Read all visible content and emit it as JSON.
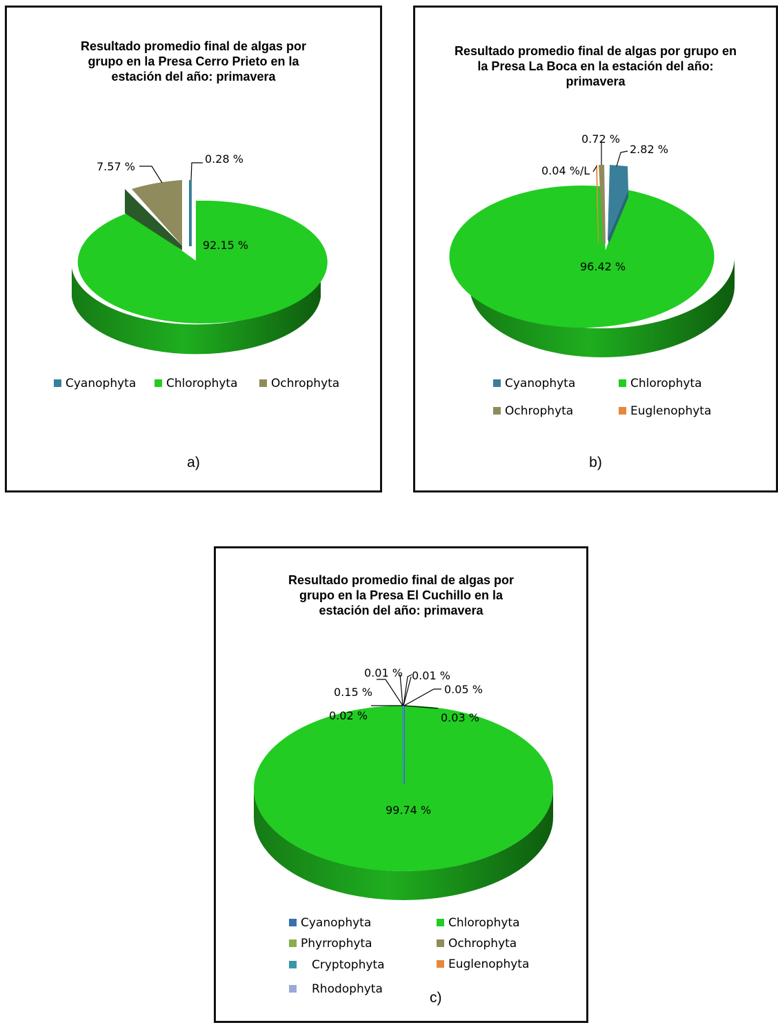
{
  "colors": {
    "Cyanophyta": "#3a7f9a",
    "Chlorophyta": "#22cc22",
    "Ochrophyta": "#8f8b5c",
    "Euglenophyta": "#e8873a",
    "Phyrrophyta": "#8aad4e",
    "Cryptophyta": "#3a95a8",
    "Rhodophyta": "#9aabd6"
  },
  "chart_data": [
    {
      "type": "pie",
      "title": "Resultado promedio final de algas por grupo en la Presa Cerro Prieto en la estación del año: primavera",
      "caption": "a)",
      "slices": [
        {
          "name": "Cyanophyta",
          "value": 0.28,
          "label": "0.28 %"
        },
        {
          "name": "Chlorophyta",
          "value": 92.15,
          "label": "92.15 %"
        },
        {
          "name": "Ochrophyta",
          "value": 7.57,
          "label": "7.57 %"
        }
      ],
      "legend": [
        "Cyanophyta",
        "Chlorophyta",
        "Ochrophyta"
      ]
    },
    {
      "type": "pie",
      "title": "Resultado promedio final de algas por grupo en la Presa La Boca en la estación del año: primavera",
      "caption": "b)",
      "slices": [
        {
          "name": "Cyanophyta",
          "value": 2.82,
          "label": "2.82 %"
        },
        {
          "name": "Chlorophyta",
          "value": 96.42,
          "label": "96.42 %"
        },
        {
          "name": "Ochrophyta",
          "value": 0.72,
          "label": "0.72 %"
        },
        {
          "name": "Euglenophyta",
          "value": 0.04,
          "label": "0.04 %/L"
        }
      ],
      "legend": [
        "Cyanophyta",
        "Chlorophyta",
        "Ochrophyta",
        "Euglenophyta"
      ]
    },
    {
      "type": "pie",
      "title": "Resultado promedio final de algas por grupo en la Presa El Cuchillo en la estación del año: primavera",
      "caption": "c)",
      "slices": [
        {
          "name": "Cyanophyta",
          "value": 0.05,
          "label": "0.05 %"
        },
        {
          "name": "Chlorophyta",
          "value": 99.74,
          "label": "99.74 %"
        },
        {
          "name": "Phyrrophyta",
          "value": 0.03,
          "label": "0.03 %"
        },
        {
          "name": "Ochrophyta",
          "value": 0.02,
          "label": "0.02 %"
        },
        {
          "name": "Cryptophyta",
          "value": 0.15,
          "label": "0.15 %"
        },
        {
          "name": "Euglenophyta",
          "value": 0.01,
          "label": "0.01 %"
        },
        {
          "name": "Rhodophyta",
          "value": 0.01,
          "label": "0.01 %"
        }
      ],
      "legend": [
        "Cyanophyta",
        "Chlorophyta",
        "Phyrrophyta",
        "Ochrophyta",
        "Cryptophyta",
        "Euglenophyta",
        "Rhodophyta"
      ]
    }
  ]
}
